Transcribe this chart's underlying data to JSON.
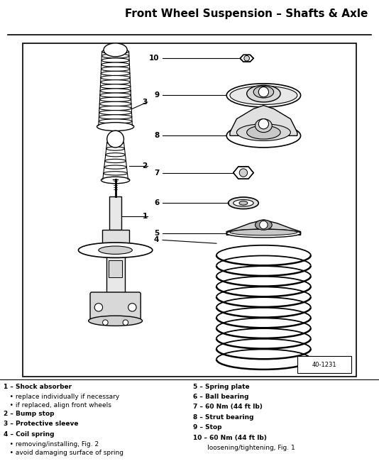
{
  "title": "Front Wheel Suspension – Shafts & Axle",
  "background_color": "#ffffff",
  "text_color": "#000000",
  "ref_number": "40-1231",
  "legend_left": [
    [
      "1",
      true,
      " – Shock absorber"
    ],
    [
      "",
      false,
      "   • replace individually if necessary"
    ],
    [
      "",
      false,
      "   • if replaced, align front wheels"
    ],
    [
      "2",
      true,
      " – Bump stop"
    ],
    [
      "3",
      true,
      " – Protective sleeve"
    ],
    [
      "4",
      true,
      " – Coil spring"
    ],
    [
      "",
      false,
      "   • removing/installing, Fig. 2"
    ],
    [
      "",
      false,
      "   • avoid damaging surface of spring"
    ]
  ],
  "legend_right": [
    [
      "5",
      true,
      " – Spring plate"
    ],
    [
      "6",
      true,
      " – Ball bearing"
    ],
    [
      "7",
      true,
      " – 60 Nm (44 ft lb)"
    ],
    [
      "8",
      true,
      " – Strut bearing"
    ],
    [
      "9",
      true,
      " – Stop"
    ],
    [
      "10",
      true,
      " – 60 Nm (44 ft lb)"
    ],
    [
      "",
      false,
      "       loosening/tightening, Fig. 1"
    ]
  ]
}
